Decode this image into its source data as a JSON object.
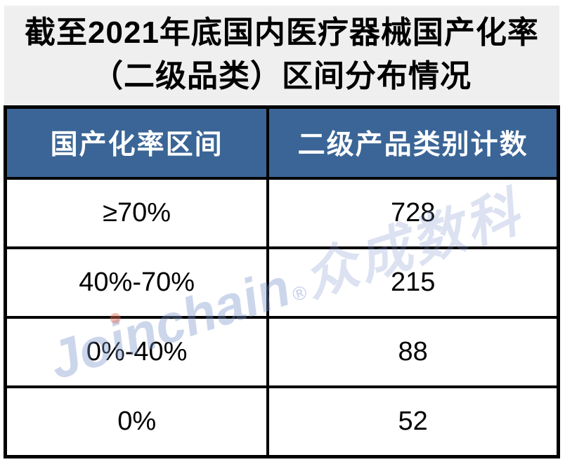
{
  "title": {
    "line1": "截至2021年底国内医疗器械国产化率",
    "line2": "（二级品类）区间分布情况"
  },
  "table": {
    "headers": [
      "国产化率区间",
      "二级产品类别计数"
    ],
    "rows": [
      {
        "range": "≥70%",
        "count": "728"
      },
      {
        "range": "40%-70%",
        "count": "215"
      },
      {
        "range": "0%-40%",
        "count": "88"
      },
      {
        "range": "0%",
        "count": "52"
      }
    ]
  },
  "watermark": {
    "latin": "Joinchain",
    "reg": "®",
    "cjk": "众成数科"
  },
  "colors": {
    "title_background": "#EFEFEF",
    "header_background": "#3A6596",
    "header_text": "#FFFFFF",
    "body_text": "#000000",
    "border": "#000000",
    "watermark_blue": "#C3CDE8",
    "watermark_dot_red": "#E4705A"
  },
  "chart_data": {
    "type": "table",
    "title": "截至2021年底国内医疗器械国产化率（二级品类）区间分布情况",
    "columns": [
      "国产化率区间",
      "二级产品类别计数"
    ],
    "rows": [
      [
        "≥70%",
        728
      ],
      [
        "40%-70%",
        215
      ],
      [
        "0%-40%",
        88
      ],
      [
        "0%",
        52
      ]
    ]
  }
}
